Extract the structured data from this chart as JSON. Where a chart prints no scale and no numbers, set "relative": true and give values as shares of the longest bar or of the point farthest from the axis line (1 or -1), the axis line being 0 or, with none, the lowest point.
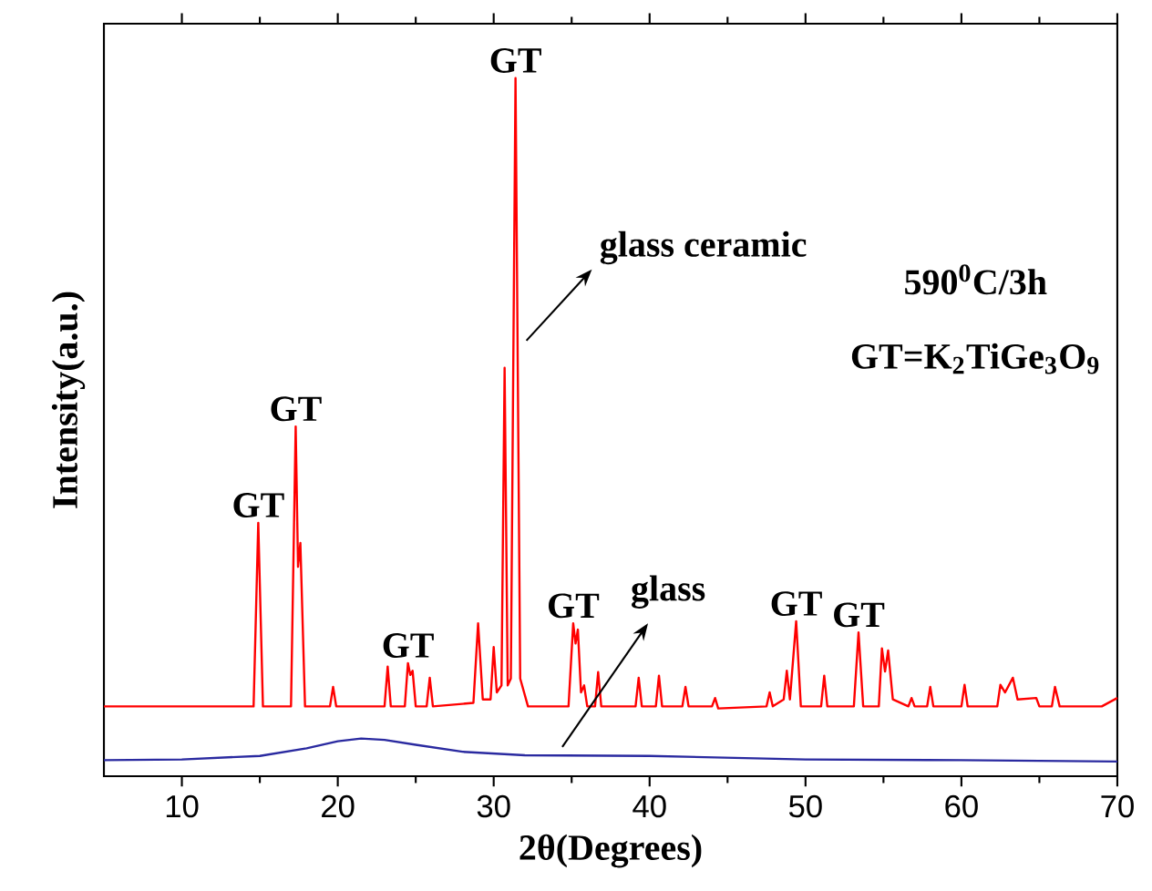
{
  "chart_data": {
    "type": "line",
    "relative": true,
    "xlabel": "2θ(Degrees)",
    "ylabel": "Intensity(a.u.)",
    "xlim": [
      5,
      70
    ],
    "xticks": [
      10,
      20,
      30,
      40,
      50,
      60,
      70
    ],
    "marker": "none",
    "line_style": "solid",
    "series": [
      {
        "name": "glass ceramic",
        "color": "#ff0000",
        "x": [
          5,
          14.6,
          14.9,
          15.2,
          17.0,
          17.3,
          17.45,
          17.6,
          17.9,
          19.5,
          19.7,
          19.9,
          23.0,
          23.2,
          23.4,
          24.3,
          24.5,
          24.65,
          24.8,
          25.0,
          25.7,
          25.9,
          26.1,
          28.7,
          29.0,
          29.3,
          29.8,
          30.0,
          30.2,
          30.5,
          30.7,
          30.9,
          31.1,
          31.4,
          31.7,
          32.2,
          34.8,
          35.1,
          35.25,
          35.4,
          35.6,
          35.8,
          36.0,
          36.5,
          36.7,
          36.9,
          39.1,
          39.3,
          39.5,
          40.4,
          40.6,
          40.8,
          42.1,
          42.3,
          42.5,
          44.0,
          44.2,
          44.4,
          47.5,
          47.7,
          47.9,
          48.6,
          48.8,
          49.0,
          49.4,
          49.7,
          51.0,
          51.2,
          51.4,
          53.1,
          53.4,
          53.7,
          54.7,
          54.9,
          55.1,
          55.3,
          55.6,
          56.6,
          56.8,
          57.0,
          57.8,
          58.0,
          58.2,
          60.0,
          60.2,
          60.4,
          62.3,
          62.5,
          62.8,
          63.3,
          63.6,
          64.8,
          65.0,
          65.8,
          66.0,
          66.3,
          69.0,
          70
        ],
        "values": [
          0.1,
          0.1,
          0.363,
          0.1,
          0.1,
          0.501,
          0.3,
          0.334,
          0.1,
          0.1,
          0.128,
          0.1,
          0.1,
          0.157,
          0.1,
          0.1,
          0.162,
          0.145,
          0.151,
          0.1,
          0.1,
          0.141,
          0.1,
          0.105,
          0.219,
          0.11,
          0.11,
          0.185,
          0.12,
          0.13,
          0.585,
          0.13,
          0.14,
          1.0,
          0.14,
          0.1,
          0.1,
          0.219,
          0.19,
          0.21,
          0.12,
          0.13,
          0.1,
          0.1,
          0.149,
          0.1,
          0.1,
          0.141,
          0.1,
          0.1,
          0.144,
          0.1,
          0.1,
          0.128,
          0.1,
          0.1,
          0.112,
          0.097,
          0.1,
          0.12,
          0.1,
          0.11,
          0.151,
          0.11,
          0.222,
          0.1,
          0.1,
          0.144,
          0.1,
          0.1,
          0.206,
          0.1,
          0.1,
          0.183,
          0.15,
          0.18,
          0.11,
          0.1,
          0.112,
          0.1,
          0.1,
          0.128,
          0.1,
          0.1,
          0.131,
          0.1,
          0.1,
          0.131,
          0.12,
          0.141,
          0.11,
          0.112,
          0.1,
          0.1,
          0.128,
          0.1,
          0.1,
          0.112
        ]
      },
      {
        "name": "glass",
        "color": "#2a2aa0",
        "x": [
          5,
          10,
          15,
          18,
          20,
          21.5,
          23,
          25,
          28,
          32,
          40,
          50,
          60,
          70
        ],
        "values": [
          0.023,
          0.024,
          0.029,
          0.04,
          0.05,
          0.054,
          0.052,
          0.045,
          0.035,
          0.03,
          0.029,
          0.024,
          0.023,
          0.021
        ]
      }
    ],
    "annotations": [
      {
        "text": "GT",
        "x": 14.9,
        "y": 0.363
      },
      {
        "text": "GT",
        "x": 17.3,
        "y": 0.501
      },
      {
        "text": "GT",
        "x": 24.5,
        "y": 0.162
      },
      {
        "text": "GT",
        "x": 31.4,
        "y": 1.0
      },
      {
        "text": "GT",
        "x": 35.1,
        "y": 0.219
      },
      {
        "text": "GT",
        "x": 49.4,
        "y": 0.222
      },
      {
        "text": "GT",
        "x": 53.4,
        "y": 0.206
      },
      "590$^{0}$C/3h",
      "GT=K$_{2}$TiGe$_{3}$O$_{9}$"
    ]
  }
}
